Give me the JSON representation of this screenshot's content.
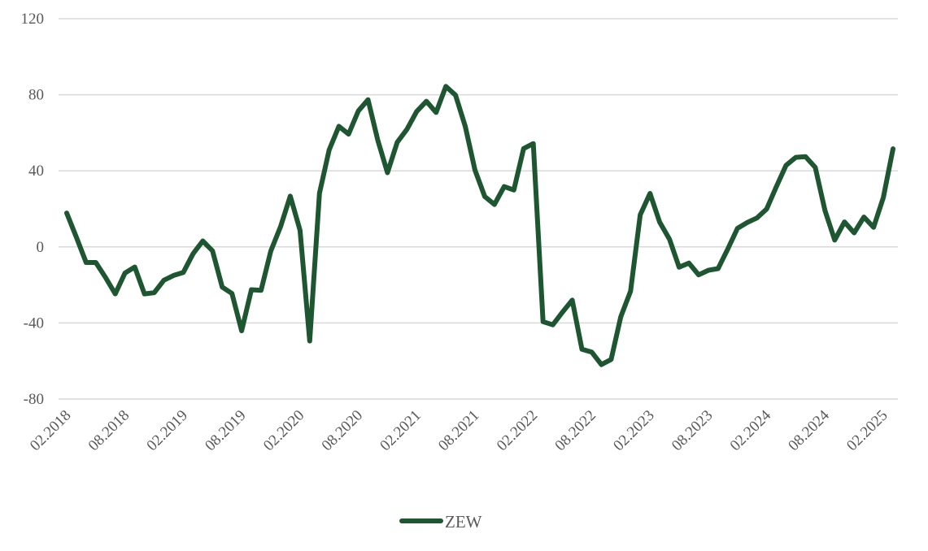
{
  "chart_data": {
    "type": "line",
    "title": "",
    "xlabel": "",
    "ylabel": "",
    "ylim": [
      -80,
      120
    ],
    "yticks": [
      -80,
      -40,
      0,
      40,
      80,
      120
    ],
    "grid": true,
    "legend_position": "bottom",
    "x": [
      "02.2018",
      "03.2018",
      "04.2018",
      "05.2018",
      "06.2018",
      "07.2018",
      "08.2018",
      "09.2018",
      "10.2018",
      "11.2018",
      "12.2018",
      "01.2019",
      "02.2019",
      "03.2019",
      "04.2019",
      "05.2019",
      "06.2019",
      "07.2019",
      "08.2019",
      "09.2019",
      "10.2019",
      "11.2019",
      "12.2019",
      "01.2020",
      "02.2020",
      "03.2020",
      "04.2020",
      "05.2020",
      "06.2020",
      "07.2020",
      "08.2020",
      "09.2020",
      "10.2020",
      "11.2020",
      "12.2020",
      "01.2021",
      "02.2021",
      "03.2021",
      "04.2021",
      "05.2021",
      "06.2021",
      "07.2021",
      "08.2021",
      "09.2021",
      "10.2021",
      "11.2021",
      "12.2021",
      "01.2022",
      "02.2022",
      "03.2022",
      "04.2022",
      "05.2022",
      "06.2022",
      "07.2022",
      "08.2022",
      "09.2022",
      "10.2022",
      "11.2022",
      "12.2022",
      "01.2023",
      "02.2023",
      "03.2023",
      "04.2023",
      "05.2023",
      "06.2023",
      "07.2023",
      "08.2023",
      "09.2023",
      "10.2023",
      "11.2023",
      "12.2023",
      "01.2024",
      "02.2024",
      "03.2024",
      "04.2024",
      "05.2024",
      "06.2024",
      "07.2024",
      "08.2024",
      "09.2024",
      "10.2024",
      "11.2024",
      "12.2024",
      "01.2025",
      "02.2025",
      "03.2025"
    ],
    "tick_labels": [
      "02.2018",
      "08.2018",
      "02.2019",
      "08.2019",
      "02.2020",
      "08.2020",
      "02.2021",
      "08.2021",
      "02.2022",
      "08.2022",
      "02.2023",
      "08.2023",
      "02.2024",
      "08.2024",
      "02.2025"
    ],
    "series": [
      {
        "name": "ZEW",
        "color": "#1e5631",
        "values": [
          17.8,
          5.1,
          -8.2,
          -8.2,
          -16.1,
          -24.7,
          -13.7,
          -10.6,
          -24.7,
          -24.1,
          -17.5,
          -15.0,
          -13.4,
          -3.6,
          3.1,
          -2.1,
          -21.1,
          -24.5,
          -44.1,
          -22.5,
          -22.8,
          -2.1,
          10.7,
          26.7,
          8.7,
          -49.5,
          28.2,
          51.0,
          63.4,
          59.3,
          71.5,
          77.4,
          56.1,
          39.0,
          55.0,
          61.8,
          71.2,
          76.6,
          70.7,
          84.4,
          79.8,
          63.3,
          40.4,
          26.5,
          22.3,
          31.7,
          29.9,
          51.7,
          54.3,
          -39.3,
          -41.0,
          -34.3,
          -28.0,
          -53.8,
          -55.3,
          -61.9,
          -59.2,
          -36.7,
          -23.3,
          16.9,
          28.1,
          13.0,
          4.1,
          -10.7,
          -8.5,
          -14.7,
          -12.3,
          -11.4,
          -1.1,
          9.8,
          12.8,
          15.2,
          19.9,
          31.7,
          42.9,
          47.1,
          47.5,
          41.8,
          19.2,
          3.6,
          13.1,
          7.4,
          15.7,
          10.3,
          26.0,
          51.6
        ]
      }
    ]
  }
}
